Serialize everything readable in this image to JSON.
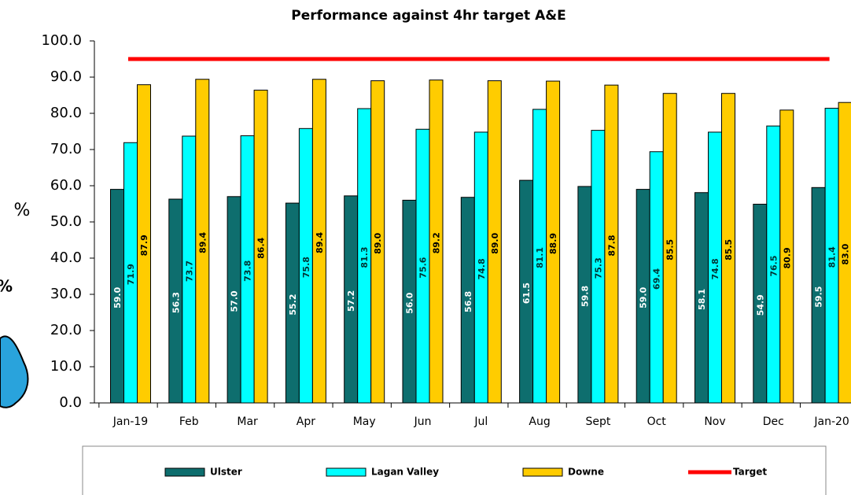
{
  "chart_data": {
    "type": "bar",
    "title": "Performance against 4hr target A&E",
    "y_label": "%",
    "overlay_text": "%",
    "categories": [
      "Jan-19",
      "Feb",
      "Mar",
      "Apr",
      "May",
      "Jun",
      "Jul",
      "Aug",
      "Sept",
      "Oct",
      "Nov",
      "Dec",
      "Jan-20"
    ],
    "series": [
      {
        "name": "Ulster",
        "color": "#0e6e6e",
        "label_color": "#ffffff",
        "values": [
          59.0,
          56.3,
          57.0,
          55.2,
          57.2,
          56.0,
          56.8,
          61.5,
          59.8,
          59.0,
          58.1,
          54.9,
          59.5
        ],
        "value_labels": [
          "59.0",
          "56.3",
          "57.0",
          "55.2",
          "57.2",
          "56.0",
          "56.8",
          "61.5",
          "59.8",
          "59.0",
          "58.1",
          "54.9",
          "59.5"
        ]
      },
      {
        "name": "Lagan Valley",
        "color": "#00ffff",
        "label_color": "#003333",
        "values": [
          71.9,
          73.7,
          73.8,
          75.8,
          81.3,
          75.6,
          74.8,
          81.1,
          75.3,
          69.4,
          74.8,
          76.5,
          81.4
        ],
        "value_labels": [
          "71.9",
          "73.7",
          "73.8",
          "75.8",
          "81.3",
          "75.6",
          "74.8",
          "81.1",
          "75.3",
          "69.4",
          "74.8",
          "76.5",
          "81.4"
        ]
      },
      {
        "name": "Downe",
        "color": "#ffcc00",
        "label_color": "#000000",
        "values": [
          87.9,
          89.4,
          86.4,
          89.4,
          89.0,
          89.2,
          89.0,
          88.9,
          87.8,
          85.5,
          85.5,
          80.9,
          83.0
        ],
        "value_labels": [
          "87.9",
          "89.4",
          "86.4",
          "89.4",
          "89.0",
          "89.2",
          "89.0",
          "88.9",
          "87.8",
          "85.5",
          "85.5",
          "80.9",
          "83.0"
        ]
      },
      {
        "name": "Target",
        "color": "#ff0000",
        "type": "line",
        "values": [
          95,
          95,
          95,
          95,
          95,
          95,
          95,
          95,
          95,
          95,
          95,
          95,
          95
        ]
      }
    ],
    "ylim": [
      0,
      100
    ],
    "yticks": [
      {
        "value": 0,
        "label": "0.0"
      },
      {
        "value": 10,
        "label": "10.0"
      },
      {
        "value": 20,
        "label": "20.0"
      },
      {
        "value": 30,
        "label": "30.0"
      },
      {
        "value": 40,
        "label": "40.0"
      },
      {
        "value": 50,
        "label": "50.0"
      },
      {
        "value": 60,
        "label": "60.0"
      },
      {
        "value": 70,
        "label": "70.0"
      },
      {
        "value": 80,
        "label": "80.0"
      },
      {
        "value": 90,
        "label": "90.0"
      },
      {
        "value": 100,
        "label": "100.0"
      }
    ],
    "grid": false,
    "legend": "bottom"
  }
}
